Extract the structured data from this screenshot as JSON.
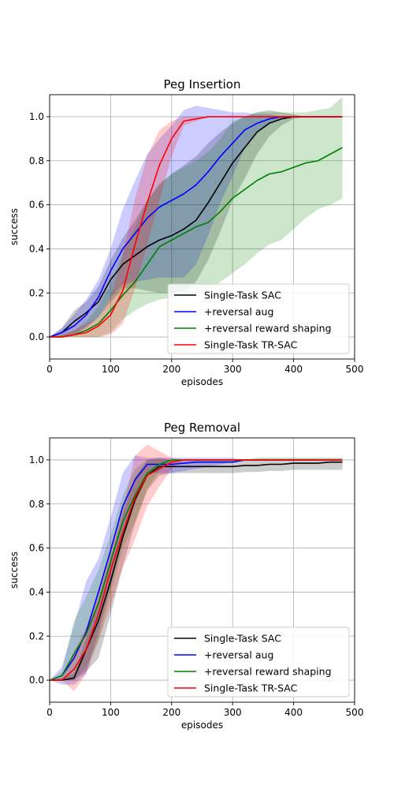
{
  "chart_data": [
    {
      "type": "line",
      "title": "Peg Insertion",
      "xlabel": "episodes",
      "ylabel": "success",
      "xlim": [
        0,
        500
      ],
      "ylim": [
        -0.1,
        1.1
      ],
      "xticks": [
        "0",
        "100",
        "200",
        "300",
        "400",
        "500"
      ],
      "yticks": [
        "0.0",
        "0.2",
        "0.4",
        "0.6",
        "0.8",
        "1.0"
      ],
      "grid": true,
      "legend_position": "lower-right",
      "series": [
        {
          "name": "Single-Task SAC",
          "color": "#000000",
          "x": [
            0,
            20,
            40,
            60,
            80,
            100,
            120,
            140,
            160,
            180,
            200,
            220,
            240,
            260,
            280,
            300,
            320,
            340,
            360,
            380,
            400,
            420,
            440,
            460,
            480
          ],
          "mean": [
            0.0,
            0.02,
            0.07,
            0.11,
            0.16,
            0.26,
            0.33,
            0.37,
            0.41,
            0.44,
            0.46,
            0.49,
            0.53,
            0.61,
            0.7,
            0.79,
            0.86,
            0.93,
            0.97,
            0.99,
            1.0,
            1.0,
            1.0,
            1.0,
            1.0
          ],
          "upper": [
            0.0,
            0.04,
            0.12,
            0.16,
            0.23,
            0.35,
            0.45,
            0.53,
            0.62,
            0.69,
            0.74,
            0.78,
            0.82,
            0.88,
            0.93,
            0.97,
            1.0,
            1.02,
            1.03,
            1.02,
            1.01,
            1.0,
            1.0,
            1.0,
            1.0
          ],
          "lower": [
            0.0,
            0.0,
            0.01,
            0.05,
            0.09,
            0.16,
            0.22,
            0.22,
            0.21,
            0.2,
            0.2,
            0.21,
            0.25,
            0.35,
            0.48,
            0.62,
            0.72,
            0.83,
            0.91,
            0.96,
            0.99,
            1.0,
            1.0,
            1.0,
            1.0
          ]
        },
        {
          "name": "+reversal aug",
          "color": "#0000ff",
          "x": [
            0,
            20,
            40,
            60,
            80,
            100,
            120,
            140,
            160,
            180,
            200,
            220,
            240,
            260,
            280,
            300,
            320,
            340,
            360,
            380,
            400,
            420,
            440,
            460,
            480
          ],
          "mean": [
            0.0,
            0.02,
            0.05,
            0.1,
            0.18,
            0.3,
            0.4,
            0.47,
            0.54,
            0.59,
            0.62,
            0.65,
            0.69,
            0.75,
            0.82,
            0.88,
            0.94,
            0.97,
            0.99,
            1.0,
            1.0,
            1.0,
            1.0,
            1.0,
            1.0
          ],
          "upper": [
            0.0,
            0.04,
            0.1,
            0.17,
            0.26,
            0.4,
            0.58,
            0.71,
            0.83,
            0.9,
            0.96,
            1.03,
            1.05,
            1.04,
            1.03,
            1.02,
            1.02,
            1.01,
            1.01,
            1.0,
            1.0,
            1.0,
            1.0,
            1.0,
            1.0
          ],
          "lower": [
            0.0,
            0.0,
            0.01,
            0.04,
            0.09,
            0.18,
            0.24,
            0.25,
            0.26,
            0.27,
            0.27,
            0.27,
            0.33,
            0.46,
            0.61,
            0.73,
            0.86,
            0.93,
            0.97,
            0.99,
            1.0,
            1.0,
            1.0,
            1.0,
            1.0
          ]
        },
        {
          "name": "+reversal reward shaping",
          "color": "#008000",
          "x": [
            0,
            20,
            40,
            60,
            80,
            100,
            120,
            140,
            160,
            180,
            200,
            220,
            240,
            260,
            280,
            300,
            320,
            340,
            360,
            380,
            400,
            420,
            440,
            460,
            480
          ],
          "mean": [
            0.0,
            0.0,
            0.01,
            0.03,
            0.06,
            0.12,
            0.19,
            0.25,
            0.33,
            0.41,
            0.44,
            0.47,
            0.5,
            0.52,
            0.57,
            0.63,
            0.67,
            0.71,
            0.74,
            0.75,
            0.77,
            0.79,
            0.8,
            0.83,
            0.86
          ],
          "upper": [
            0.0,
            0.01,
            0.03,
            0.07,
            0.14,
            0.24,
            0.38,
            0.5,
            0.62,
            0.7,
            0.74,
            0.77,
            0.8,
            0.84,
            0.9,
            0.98,
            1.0,
            1.02,
            1.02,
            1.02,
            1.02,
            1.02,
            1.03,
            1.04,
            1.09
          ],
          "lower": [
            0.0,
            0.0,
            0.0,
            0.0,
            0.0,
            0.02,
            0.08,
            0.12,
            0.15,
            0.17,
            0.18,
            0.18,
            0.19,
            0.21,
            0.25,
            0.29,
            0.33,
            0.38,
            0.42,
            0.44,
            0.49,
            0.54,
            0.58,
            0.6,
            0.63
          ]
        },
        {
          "name": "Single-Task TR-SAC",
          "color": "#ff0000",
          "x": [
            0,
            20,
            40,
            60,
            80,
            100,
            120,
            140,
            160,
            180,
            200,
            220,
            240,
            260,
            280,
            300,
            320,
            340,
            360,
            380,
            400,
            420,
            440,
            460,
            480
          ],
          "mean": [
            0.0,
            0.0,
            0.01,
            0.02,
            0.05,
            0.1,
            0.21,
            0.42,
            0.61,
            0.78,
            0.9,
            0.98,
            0.99,
            1.0,
            1.0,
            1.0,
            1.0,
            1.0,
            1.0,
            1.0,
            1.0,
            1.0,
            1.0,
            1.0,
            1.0
          ],
          "upper": [
            0.0,
            0.01,
            0.03,
            0.06,
            0.09,
            0.18,
            0.37,
            0.63,
            0.82,
            0.94,
            0.98,
            1.0,
            1.0,
            1.0,
            1.0,
            1.0,
            1.0,
            1.0,
            1.0,
            1.0,
            1.0,
            1.0,
            1.0,
            1.0,
            1.0
          ],
          "lower": [
            0.0,
            0.0,
            0.0,
            0.0,
            0.0,
            0.01,
            0.06,
            0.22,
            0.42,
            0.62,
            0.82,
            0.96,
            0.98,
            1.0,
            1.0,
            1.0,
            1.0,
            1.0,
            1.0,
            1.0,
            1.0,
            1.0,
            1.0,
            1.0,
            1.0
          ]
        }
      ]
    },
    {
      "type": "line",
      "title": "Peg Removal",
      "xlabel": "episodes",
      "ylabel": "success",
      "xlim": [
        0,
        500
      ],
      "ylim": [
        -0.1,
        1.1
      ],
      "xticks": [
        "0",
        "100",
        "200",
        "300",
        "400",
        "500"
      ],
      "yticks": [
        "0.0",
        "0.2",
        "0.4",
        "0.6",
        "0.8",
        "1.0"
      ],
      "grid": true,
      "legend_position": "lower-right",
      "series": [
        {
          "name": "Single-Task SAC",
          "color": "#000000",
          "x": [
            0,
            20,
            40,
            60,
            80,
            100,
            120,
            140,
            160,
            180,
            200,
            220,
            240,
            260,
            280,
            300,
            320,
            340,
            360,
            380,
            400,
            420,
            440,
            460,
            480
          ],
          "mean": [
            0.0,
            0.0,
            0.01,
            0.14,
            0.27,
            0.45,
            0.65,
            0.82,
            0.93,
            0.97,
            0.97,
            0.97,
            0.97,
            0.97,
            0.97,
            0.97,
            0.975,
            0.975,
            0.98,
            0.98,
            0.985,
            0.985,
            0.985,
            0.99,
            0.99
          ],
          "upper": [
            0.0,
            0.01,
            0.03,
            0.19,
            0.36,
            0.55,
            0.76,
            0.92,
            1.0,
            1.01,
            1.0,
            1.0,
            1.0,
            1.0,
            1.0,
            1.0,
            1.0,
            1.01,
            1.01,
            1.01,
            1.01,
            1.01,
            1.01,
            1.01,
            1.01
          ],
          "lower": [
            0.0,
            0.0,
            0.0,
            0.04,
            0.1,
            0.3,
            0.52,
            0.71,
            0.86,
            0.93,
            0.94,
            0.94,
            0.94,
            0.94,
            0.94,
            0.94,
            0.945,
            0.945,
            0.95,
            0.95,
            0.955,
            0.955,
            0.955,
            0.955,
            0.955
          ]
        },
        {
          "name": "+reversal aug",
          "color": "#0000ff",
          "x": [
            0,
            20,
            40,
            60,
            80,
            100,
            120,
            140,
            160,
            180,
            200,
            220,
            240,
            260,
            280,
            300,
            320,
            340,
            360,
            380,
            400,
            420,
            440,
            460,
            480
          ],
          "mean": [
            0.0,
            0.02,
            0.1,
            0.22,
            0.4,
            0.59,
            0.79,
            0.91,
            0.98,
            0.98,
            0.98,
            0.985,
            0.99,
            0.99,
            0.99,
            0.99,
            1.0,
            1.0,
            1.0,
            1.0,
            1.0,
            1.0,
            1.0,
            1.0,
            1.0
          ],
          "upper": [
            0.0,
            0.06,
            0.25,
            0.45,
            0.55,
            0.74,
            0.94,
            1.02,
            1.01,
            1.01,
            1.01,
            1.01,
            1.01,
            1.01,
            1.01,
            1.01,
            1.0,
            1.0,
            1.0,
            1.0,
            1.0,
            1.0,
            1.0,
            1.0,
            1.0
          ],
          "lower": [
            0.0,
            -0.02,
            -0.02,
            0.03,
            0.22,
            0.43,
            0.64,
            0.8,
            0.94,
            0.94,
            0.94,
            0.95,
            0.96,
            0.97,
            0.98,
            0.99,
            1.0,
            1.0,
            1.0,
            1.0,
            1.0,
            1.0,
            1.0,
            1.0,
            1.0
          ]
        },
        {
          "name": "+reversal reward shaping",
          "color": "#008000",
          "x": [
            0,
            20,
            40,
            60,
            80,
            100,
            120,
            140,
            160,
            180,
            200,
            220,
            240,
            260,
            280,
            300,
            320,
            340,
            360,
            380,
            400,
            420,
            440,
            460,
            480
          ],
          "mean": [
            0.0,
            0.02,
            0.12,
            0.21,
            0.35,
            0.54,
            0.72,
            0.84,
            0.94,
            0.98,
            1.0,
            1.0,
            1.0,
            1.0,
            1.0,
            1.0,
            1.0,
            1.0,
            1.0,
            1.0,
            1.0,
            1.0,
            1.0,
            1.0,
            1.0
          ],
          "upper": [
            0.0,
            0.04,
            0.27,
            0.38,
            0.5,
            0.66,
            0.84,
            0.96,
            1.0,
            1.0,
            1.0,
            1.0,
            1.0,
            1.0,
            1.0,
            1.0,
            1.0,
            1.0,
            1.0,
            1.0,
            1.0,
            1.0,
            1.0,
            1.0,
            1.0
          ],
          "lower": [
            0.0,
            0.0,
            0.0,
            0.06,
            0.18,
            0.4,
            0.6,
            0.72,
            0.87,
            0.95,
            1.0,
            1.0,
            1.0,
            1.0,
            1.0,
            1.0,
            1.0,
            1.0,
            1.0,
            1.0,
            1.0,
            1.0,
            1.0,
            1.0,
            1.0
          ]
        },
        {
          "name": "Single-Task TR-SAC",
          "color": "#ff0000",
          "x": [
            0,
            20,
            40,
            60,
            80,
            100,
            120,
            140,
            160,
            180,
            200,
            220,
            240,
            260,
            280,
            300,
            320,
            340,
            360,
            380,
            400,
            420,
            440,
            460,
            480
          ],
          "mean": [
            0.0,
            0.0,
            0.05,
            0.14,
            0.3,
            0.5,
            0.67,
            0.83,
            0.93,
            0.96,
            0.99,
            1.0,
            1.0,
            1.0,
            1.0,
            1.0,
            1.0,
            1.0,
            1.0,
            1.0,
            1.0,
            1.0,
            1.0,
            1.0,
            1.0
          ],
          "upper": [
            0.0,
            0.01,
            0.13,
            0.24,
            0.4,
            0.58,
            0.78,
            1.02,
            1.07,
            1.04,
            1.01,
            1.0,
            1.0,
            1.0,
            1.0,
            1.0,
            1.0,
            1.0,
            1.0,
            1.0,
            1.0,
            1.0,
            1.0,
            1.0,
            1.0
          ],
          "lower": [
            0.0,
            0.0,
            -0.05,
            0.03,
            0.18,
            0.34,
            0.51,
            0.64,
            0.79,
            0.88,
            0.96,
            1.0,
            1.0,
            1.0,
            1.0,
            1.0,
            1.0,
            1.0,
            1.0,
            1.0,
            1.0,
            1.0,
            1.0,
            1.0,
            1.0
          ]
        }
      ]
    }
  ]
}
